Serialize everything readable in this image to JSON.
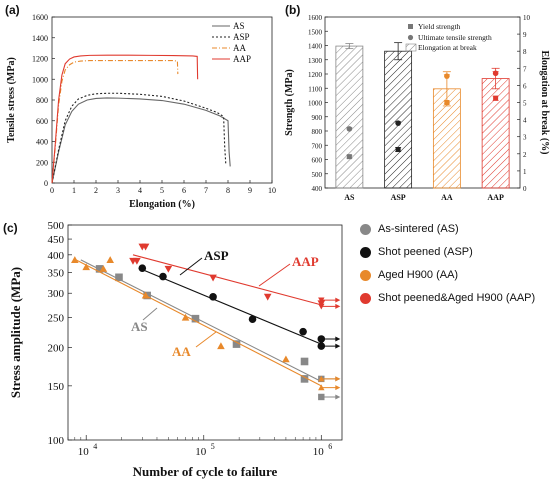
{
  "chart_data": [
    {
      "panel": "(a)",
      "type": "line",
      "xlabel": "Elongation (%)",
      "ylabel": "Tensile stress (MPa)",
      "xlim": [
        0,
        10
      ],
      "ylim": [
        0,
        1600
      ],
      "xticks": [
        "0",
        "1",
        "2",
        "3",
        "4",
        "5",
        "6",
        "7",
        "8",
        "9",
        "10"
      ],
      "yticks": [
        "0",
        "200",
        "400",
        "600",
        "800",
        "1000",
        "1200",
        "1400",
        "1600"
      ],
      "legend": "top-right",
      "series": [
        {
          "name": "AS",
          "color": "#666666",
          "dash": "",
          "x": [
            0,
            0.3,
            0.6,
            0.9,
            1.2,
            1.6,
            2,
            2.5,
            3,
            4,
            5,
            6,
            7,
            7.6,
            8,
            8.05,
            8.1
          ],
          "y": [
            0,
            300,
            560,
            690,
            760,
            800,
            815,
            820,
            818,
            810,
            795,
            760,
            700,
            650,
            600,
            300,
            160
          ]
        },
        {
          "name": "ASP",
          "color": "#222222",
          "dash": "2,2",
          "x": [
            0,
            0.3,
            0.6,
            0.9,
            1.2,
            1.6,
            2,
            2.5,
            3,
            4,
            5,
            6,
            7,
            7.5,
            7.8,
            7.85,
            7.9
          ],
          "y": [
            0,
            320,
            600,
            740,
            810,
            845,
            860,
            865,
            865,
            855,
            835,
            790,
            720,
            680,
            640,
            350,
            180
          ]
        },
        {
          "name": "AA",
          "color": "#e8892b",
          "dash": "5,2,1,2",
          "x": [
            0,
            0.15,
            0.3,
            0.45,
            0.6,
            0.8,
            1,
            1.3,
            1.7,
            2.5,
            3.5,
            4.5,
            5.5,
            5.7,
            5.72
          ],
          "y": [
            0,
            350,
            750,
            980,
            1090,
            1140,
            1165,
            1175,
            1180,
            1180,
            1180,
            1180,
            1180,
            1175,
            1050
          ]
        },
        {
          "name": "AAP",
          "color": "#e03a2f",
          "dash": "",
          "x": [
            0,
            0.15,
            0.3,
            0.45,
            0.6,
            0.8,
            1,
            1.3,
            1.7,
            2.5,
            3.5,
            4.5,
            5.5,
            6.4,
            6.6,
            6.62
          ],
          "y": [
            0,
            380,
            800,
            1040,
            1150,
            1195,
            1215,
            1225,
            1230,
            1232,
            1232,
            1230,
            1228,
            1225,
            1220,
            1000
          ]
        }
      ]
    },
    {
      "panel": "(b)",
      "type": "bar",
      "categories": [
        "AS",
        "ASP",
        "AA",
        "AAP"
      ],
      "ylabel_left": "Strength (MPa)",
      "ylabel_right": "Elongation at break (%)",
      "ylim_left": [
        400,
        1600
      ],
      "ylim_right": [
        0,
        10
      ],
      "yticks_left": [
        "400",
        "500",
        "600",
        "700",
        "800",
        "900",
        "1000",
        "1100",
        "1200",
        "1300",
        "1400",
        "1500",
        "1600"
      ],
      "yticks_right": [
        "0",
        "1",
        "2",
        "3",
        "4",
        "5",
        "6",
        "7",
        "8",
        "9",
        "10"
      ],
      "legend": "top-right",
      "legend_labels": [
        "Yield strength",
        "Ultimate tensile strength",
        "Elongation at break"
      ],
      "bar_colors": [
        "#888888",
        "#222222",
        "#e8892b",
        "#e03a2f"
      ],
      "elongation": [
        8.3,
        8.0,
        5.8,
        6.4
      ],
      "elongation_err": [
        0.15,
        0.5,
        1.0,
        0.6
      ],
      "yield_strength": [
        620,
        670,
        1000,
        1030
      ],
      "yield_err": [
        10,
        15,
        10,
        15
      ],
      "uts": [
        815,
        855,
        1185,
        1205
      ],
      "uts_err": [
        8,
        10,
        10,
        12
      ]
    },
    {
      "panel": "(c)",
      "type": "scatter",
      "xlabel": "Number of cycle to failure",
      "ylabel": "Stress amplitude (MPa)",
      "xscale": "log",
      "yscale": "log",
      "xlim": [
        7000,
        1500000
      ],
      "ylim": [
        100,
        500
      ],
      "xticks": [
        {
          "v": 10000,
          "b": "10",
          "e": "4"
        },
        {
          "v": 100000,
          "b": "10",
          "e": "5"
        },
        {
          "v": 1000000,
          "b": "10",
          "e": "6"
        }
      ],
      "yticks": [
        "100",
        "150",
        "200",
        "250",
        "300",
        "350",
        "400",
        "450",
        "500"
      ],
      "annotations": [
        "AS",
        "ASP",
        "AA",
        "AAP"
      ],
      "legend": "right",
      "series": [
        {
          "name": "As-sintered (AS)",
          "color": "#888888",
          "marker": "square",
          "x": [
            13000,
            19000,
            33000,
            85000,
            190000,
            720000,
            720000
          ],
          "y": [
            360,
            338,
            295,
            248,
            205,
            180,
            158
          ],
          "runout": [
            {
              "x": 1000000,
              "y": 138
            },
            {
              "x": 1000000,
              "y": 158
            }
          ],
          "fit": [
            [
              9000,
              385
            ],
            [
              1000000,
              155
            ]
          ]
        },
        {
          "name": "Shot peened (ASP)",
          "color": "#111111",
          "marker": "circle",
          "x": [
            30000,
            45000,
            120000,
            260000,
            700000,
            1000000,
            1000000
          ],
          "y": [
            362,
            340,
            292,
            247,
            225,
            213,
            202
          ],
          "runout": [
            {
              "x": 1000000,
              "y": 213
            },
            {
              "x": 1000000,
              "y": 202
            }
          ],
          "fit": [
            [
              28000,
              362
            ],
            [
              1000000,
              205
            ]
          ]
        },
        {
          "name": "Aged H900 (AA)",
          "color": "#e8892b",
          "marker": "triangle-up",
          "x": [
            8000,
            10000,
            14000,
            16000,
            32000,
            70000,
            140000,
            500000
          ],
          "y": [
            385,
            365,
            360,
            385,
            295,
            250,
            202,
            183
          ],
          "runout": [
            {
              "x": 1000000,
              "y": 158
            },
            {
              "x": 1000000,
              "y": 148
            }
          ],
          "fit": [
            [
              8000,
              387
            ],
            [
              1000000,
              150
            ]
          ]
        },
        {
          "name": "Shot peened&Aged H900 (AAP)",
          "color": "#e03a2f",
          "marker": "triangle-down",
          "x": [
            25000,
            27000,
            30000,
            32000,
            50000,
            120000,
            350000,
            1000000
          ],
          "y": [
            382,
            382,
            425,
            425,
            360,
            337,
            292,
            278
          ],
          "runout": [
            {
              "x": 1000000,
              "y": 285
            },
            {
              "x": 1000000,
              "y": 272
            }
          ],
          "fit": [
            [
              25000,
              400
            ],
            [
              1000000,
              275
            ]
          ]
        }
      ]
    }
  ]
}
